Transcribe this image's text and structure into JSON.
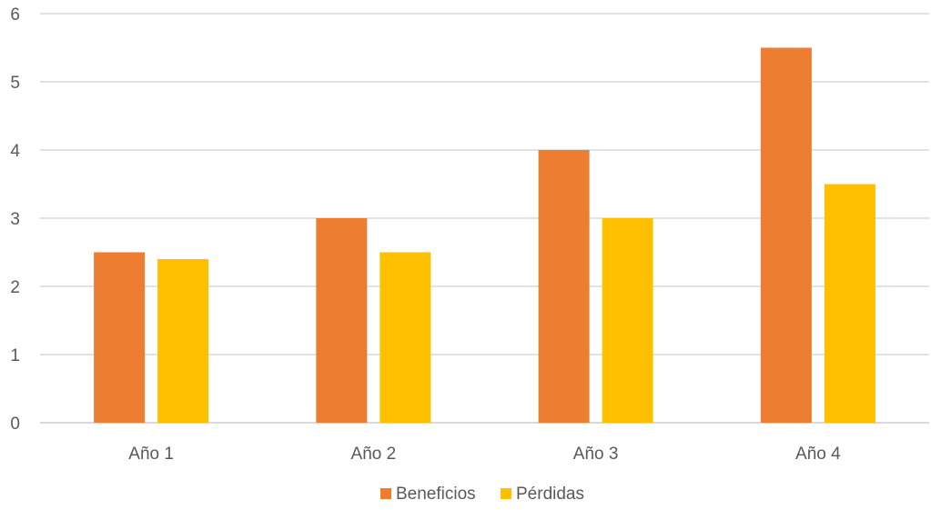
{
  "chart_data": {
    "type": "bar",
    "categories": [
      "Año 1",
      "Año 2",
      "Año 3",
      "Año 4"
    ],
    "series": [
      {
        "name": "Beneficios",
        "color": "#ED7D31",
        "values": [
          2.5,
          3,
          4,
          5.5
        ]
      },
      {
        "name": "Pérdidas",
        "color": "#FFC000",
        "values": [
          2.4,
          2.5,
          3,
          3.5
        ]
      }
    ],
    "yticks": [
      "0",
      "1",
      "2",
      "3",
      "4",
      "5",
      "6"
    ],
    "ylim": [
      0,
      6
    ],
    "grid": true,
    "gridColor": "#D9D9D9",
    "legend": "bottom"
  }
}
